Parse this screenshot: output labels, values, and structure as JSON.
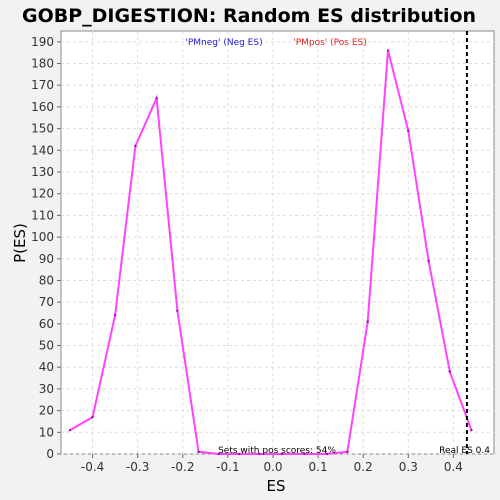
{
  "chart_data": {
    "type": "line",
    "title": "GOBP_DIGESTION: Random ES distribution",
    "xlabel": "ES",
    "ylabel": "P(ES)",
    "xlim": [
      -0.47,
      0.49
    ],
    "ylim": [
      0,
      195
    ],
    "x_ticks": [
      -0.4,
      -0.3,
      -0.2,
      -0.1,
      0.0,
      0.1,
      0.2,
      0.3,
      0.4
    ],
    "x_tick_labels": [
      "-0.4",
      "-0.3",
      "-0.2",
      "-0.1",
      "0.0",
      "0.1",
      "0.2",
      "0.3",
      "0.4"
    ],
    "y_ticks": [
      0,
      10,
      20,
      30,
      40,
      50,
      60,
      70,
      80,
      90,
      100,
      110,
      120,
      130,
      140,
      150,
      160,
      170,
      180,
      190
    ],
    "grid": true,
    "series": [
      {
        "color": "#ff44ff",
        "points": [
          [
            -0.45,
            11
          ],
          [
            -0.4,
            17
          ],
          [
            -0.35,
            64
          ],
          [
            -0.305,
            142
          ],
          [
            -0.258,
            164
          ],
          [
            -0.212,
            66
          ],
          [
            -0.165,
            1
          ],
          [
            -0.12,
            0
          ],
          [
            -0.075,
            0
          ],
          [
            -0.03,
            0
          ],
          [
            0.02,
            0
          ],
          [
            0.07,
            0
          ],
          [
            0.12,
            0
          ],
          [
            0.165,
            1
          ],
          [
            0.21,
            61
          ],
          [
            0.255,
            186
          ],
          [
            0.3,
            149
          ],
          [
            0.345,
            89
          ],
          [
            0.392,
            38
          ],
          [
            0.44,
            11
          ]
        ]
      }
    ],
    "legend": [
      {
        "label": "'PMneg' (Neg ES)",
        "color": "#2222cc"
      },
      {
        "label": "'PMpos' (Pos ES)",
        "color": "#dd2222"
      }
    ],
    "real_es": 0.43,
    "real_es_label": "Real ES 0.4",
    "annotation": "Sets with pos scores: 54%"
  }
}
